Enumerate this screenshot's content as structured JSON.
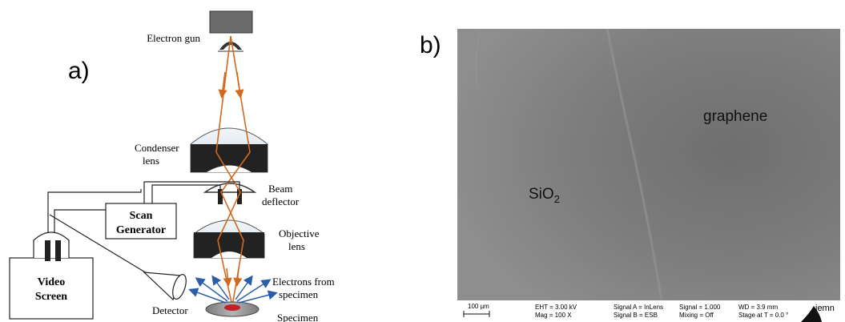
{
  "panel_a": {
    "label": "a)",
    "electron_gun": "Electron gun",
    "condenser_l1": "Condenser",
    "condenser_l2": "lens",
    "beam_l1": "Beam",
    "beam_l2": "deflector",
    "scan_l1": "Scan",
    "scan_l2": "Generator",
    "objective_l1": "Objective",
    "objective_l2": "lens",
    "video_l1": "Video",
    "video_l2": "Screen",
    "detector": "Detector",
    "electrons_l1": "Electrons from",
    "electrons_l2": "specimen",
    "specimen": "Specimen"
  },
  "panel_b": {
    "label": "b)",
    "graphene": "graphene",
    "sio2_main": "SiO",
    "sio2_sub": "2",
    "scale_bar": "100 µm",
    "eht": "EHT =  3.00 kV",
    "mag": "Mag =    100 X",
    "signal_a": "Signal A = InLens",
    "signal_b": "Signal B = ESB",
    "signal": "Signal =  1.000",
    "mixing": "Mixing = Off",
    "wd": "WD =  3.9 mm",
    "stage": "Stage at T =   0.0 °",
    "logo": "iemn"
  },
  "colors": {
    "beam": "#d2691e",
    "lens_fill": "#e4ecf2",
    "lens_dark": "#222222",
    "electron_arrow": "#2a5fa8",
    "specimen_red": "#c0222a",
    "sem_bg": "#858585"
  }
}
